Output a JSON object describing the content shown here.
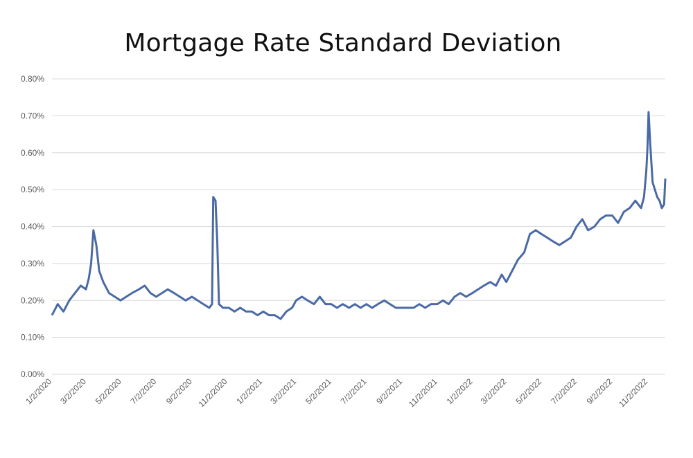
{
  "chart_data": {
    "type": "line",
    "title": "Mortgage Rate Standard Deviation",
    "xlabel": "",
    "ylabel": "",
    "ylim": [
      0,
      0.8
    ],
    "y_unit": "%",
    "y_ticks": [
      "0.00%",
      "0.10%",
      "0.20%",
      "0.30%",
      "0.40%",
      "0.50%",
      "0.60%",
      "0.70%",
      "0.80%"
    ],
    "x_ticks": [
      "1/2/2020",
      "3/2/2020",
      "5/2/2020",
      "7/2/2020",
      "9/2/2020",
      "11/2/2020",
      "1/2/2021",
      "3/2/2021",
      "5/2/2021",
      "7/2/2021",
      "9/2/2021",
      "11/2/2021",
      "1/2/2022",
      "3/2/2022",
      "5/2/2022",
      "7/2/2022",
      "9/2/2022",
      "11/2/2022"
    ],
    "x_range": [
      "2020-01-02",
      "2022-12-02"
    ],
    "grid": true,
    "legend": "none",
    "line_color": "#4a6aa5",
    "series": [
      {
        "x": [
          "2020-01-02",
          "2020-01-12",
          "2020-01-22",
          "2020-02-01",
          "2020-02-11",
          "2020-02-21",
          "2020-03-01",
          "2020-03-06",
          "2020-03-10",
          "2020-03-14",
          "2020-03-19",
          "2020-03-24",
          "2020-03-31",
          "2020-04-10",
          "2020-04-20",
          "2020-04-30",
          "2020-05-10",
          "2020-05-20",
          "2020-06-01",
          "2020-06-11",
          "2020-06-21",
          "2020-07-01",
          "2020-07-11",
          "2020-07-21",
          "2020-08-01",
          "2020-08-11",
          "2020-08-21",
          "2020-09-01",
          "2020-09-11",
          "2020-09-21",
          "2020-10-01",
          "2020-10-06",
          "2020-10-08",
          "2020-10-12",
          "2020-10-15",
          "2020-10-18",
          "2020-10-25",
          "2020-11-04",
          "2020-11-14",
          "2020-11-24",
          "2020-12-04",
          "2020-12-14",
          "2020-12-24",
          "2021-01-03",
          "2021-01-13",
          "2021-01-23",
          "2021-02-02",
          "2021-02-12",
          "2021-02-22",
          "2021-03-01",
          "2021-03-11",
          "2021-03-21",
          "2021-04-01",
          "2021-04-11",
          "2021-04-21",
          "2021-05-01",
          "2021-05-11",
          "2021-05-21",
          "2021-06-01",
          "2021-06-11",
          "2021-06-21",
          "2021-07-01",
          "2021-07-11",
          "2021-07-21",
          "2021-08-01",
          "2021-08-11",
          "2021-08-21",
          "2021-09-01",
          "2021-09-11",
          "2021-09-21",
          "2021-10-01",
          "2021-10-11",
          "2021-10-21",
          "2021-11-01",
          "2021-11-11",
          "2021-11-21",
          "2021-12-01",
          "2021-12-11",
          "2021-12-21",
          "2022-01-01",
          "2022-01-11",
          "2022-01-21",
          "2022-02-01",
          "2022-02-11",
          "2022-02-21",
          "2022-03-01",
          "2022-03-11",
          "2022-03-21",
          "2022-04-01",
          "2022-04-11",
          "2022-04-21",
          "2022-05-01",
          "2022-05-11",
          "2022-05-21",
          "2022-06-01",
          "2022-06-11",
          "2022-06-21",
          "2022-07-01",
          "2022-07-11",
          "2022-07-21",
          "2022-08-01",
          "2022-08-11",
          "2022-08-21",
          "2022-09-01",
          "2022-09-11",
          "2022-09-21",
          "2022-10-01",
          "2022-10-11",
          "2022-10-21",
          "2022-10-26",
          "2022-10-30",
          "2022-11-01",
          "2022-11-03",
          "2022-11-06",
          "2022-11-10",
          "2022-11-14",
          "2022-11-18",
          "2022-11-22",
          "2022-11-26",
          "2022-11-30",
          "2022-12-02"
        ],
        "values": [
          0.16,
          0.19,
          0.17,
          0.2,
          0.22,
          0.24,
          0.23,
          0.26,
          0.3,
          0.39,
          0.35,
          0.28,
          0.25,
          0.22,
          0.21,
          0.2,
          0.21,
          0.22,
          0.23,
          0.24,
          0.22,
          0.21,
          0.22,
          0.23,
          0.22,
          0.21,
          0.2,
          0.21,
          0.2,
          0.19,
          0.18,
          0.19,
          0.48,
          0.47,
          0.36,
          0.19,
          0.18,
          0.18,
          0.17,
          0.18,
          0.17,
          0.17,
          0.16,
          0.17,
          0.16,
          0.16,
          0.15,
          0.17,
          0.18,
          0.2,
          0.21,
          0.2,
          0.19,
          0.21,
          0.19,
          0.19,
          0.18,
          0.19,
          0.18,
          0.19,
          0.18,
          0.19,
          0.18,
          0.19,
          0.2,
          0.19,
          0.18,
          0.18,
          0.18,
          0.18,
          0.19,
          0.18,
          0.19,
          0.19,
          0.2,
          0.19,
          0.21,
          0.22,
          0.21,
          0.22,
          0.23,
          0.24,
          0.25,
          0.24,
          0.27,
          0.25,
          0.28,
          0.31,
          0.33,
          0.38,
          0.39,
          0.38,
          0.37,
          0.36,
          0.35,
          0.36,
          0.37,
          0.4,
          0.42,
          0.39,
          0.4,
          0.42,
          0.43,
          0.43,
          0.41,
          0.44,
          0.45,
          0.47,
          0.45,
          0.48,
          0.55,
          0.61,
          0.71,
          0.62,
          0.52,
          0.5,
          0.48,
          0.47,
          0.45,
          0.46,
          0.53
        ]
      }
    ]
  }
}
